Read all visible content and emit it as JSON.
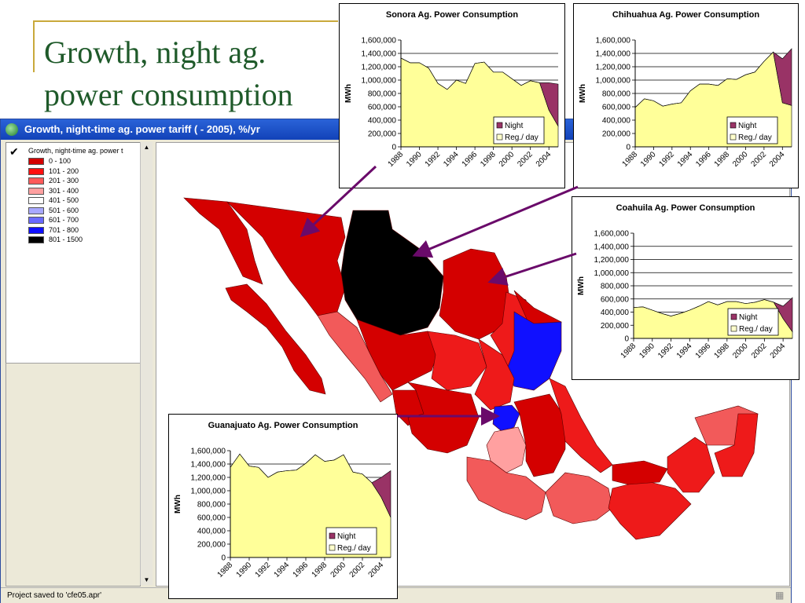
{
  "slide": {
    "title_line1": "Growth, night ag.",
    "title_line2": "power consumption"
  },
  "app": {
    "title": "Growth, night-time ag. power tariff ( - 2005), %/yr",
    "status": "Project saved to 'cfe05.apr'"
  },
  "legend": {
    "heading": "Growth, night-time ag. power t",
    "items": [
      {
        "label": "0 - 100",
        "color": "#d40000"
      },
      {
        "label": "101 - 200",
        "color": "#ff1010"
      },
      {
        "label": "201 - 300",
        "color": "#ff5a5a"
      },
      {
        "label": "301 - 400",
        "color": "#ffa0a0"
      },
      {
        "label": "401 - 500",
        "color": "#ffffff"
      },
      {
        "label": "501 - 600",
        "color": "#a8a8ff"
      },
      {
        "label": "601 - 700",
        "color": "#6a6aff"
      },
      {
        "label": "701 - 800",
        "color": "#1010ff"
      },
      {
        "label": "801 - 1500",
        "color": "#000000"
      }
    ]
  },
  "map_colors": {
    "c0_100": "#d40000",
    "c101_200": "#ee1a1a",
    "c201_300": "#f25a5a",
    "c301_400": "#ffa0a0",
    "c701_800": "#1010ff",
    "c801_1500": "#000000",
    "arrow": "#6a0a6a"
  },
  "chart_data": [
    {
      "id": "sonora",
      "type": "area",
      "title": "Sonora Ag. Power Consumption",
      "ylabel": "MWh",
      "ylim": [
        0,
        1600000
      ],
      "yticks": [
        "1,600,000",
        "1,400,000",
        "1,200,000",
        "1,000,000",
        "800,000",
        "600,000",
        "400,000",
        "200,000",
        "0"
      ],
      "xticks": [
        "1988",
        "1990",
        "1992",
        "1994",
        "1996",
        "1998",
        "2000",
        "2002",
        "2004"
      ],
      "x": [
        1988,
        1989,
        1990,
        1991,
        1992,
        1993,
        1994,
        1995,
        1996,
        1997,
        1998,
        1999,
        2000,
        2001,
        2002,
        2003,
        2004,
        2005
      ],
      "series": [
        {
          "name": "Reg./ day",
          "color": "#ffff99",
          "values": [
            1330000,
            1260000,
            1260000,
            1180000,
            950000,
            860000,
            1000000,
            950000,
            1250000,
            1270000,
            1120000,
            1120000,
            1020000,
            920000,
            990000,
            960000,
            550000,
            310000
          ]
        },
        {
          "name": "Night",
          "color": "#993366",
          "values": [
            0,
            0,
            0,
            0,
            0,
            0,
            0,
            0,
            0,
            0,
            0,
            0,
            0,
            0,
            0,
            0,
            410000,
            630000
          ]
        }
      ],
      "legend": [
        {
          "name": "Night",
          "color": "#993366"
        },
        {
          "name": "Reg./ day",
          "color": "#ffffcc"
        }
      ]
    },
    {
      "id": "chihuahua",
      "type": "area",
      "title": "Chihuahua Ag. Power Consumption",
      "ylabel": "MWh",
      "ylim": [
        0,
        1600000
      ],
      "yticks": [
        "1,600,000",
        "1,400,000",
        "1,200,000",
        "1,000,000",
        "800,000",
        "600,000",
        "400,000",
        "200,000",
        "0"
      ],
      "xticks": [
        "1988",
        "1990",
        "1992",
        "1994",
        "1996",
        "1998",
        "2000",
        "2002",
        "2004"
      ],
      "x": [
        1988,
        1989,
        1990,
        1991,
        1992,
        1993,
        1994,
        1995,
        1996,
        1997,
        1998,
        1999,
        2000,
        2001,
        2002,
        2003,
        2004,
        2005
      ],
      "series": [
        {
          "name": "Reg./ day",
          "color": "#ffff99",
          "values": [
            590000,
            720000,
            690000,
            610000,
            640000,
            660000,
            840000,
            940000,
            940000,
            920000,
            1020000,
            1010000,
            1080000,
            1120000,
            1280000,
            1420000,
            660000,
            620000
          ]
        },
        {
          "name": "Night",
          "color": "#993366",
          "values": [
            0,
            0,
            0,
            0,
            0,
            0,
            0,
            0,
            0,
            0,
            0,
            0,
            0,
            0,
            0,
            0,
            660000,
            850000
          ]
        }
      ],
      "legend": [
        {
          "name": "Night",
          "color": "#993366"
        },
        {
          "name": "Reg./ day",
          "color": "#ffffcc"
        }
      ]
    },
    {
      "id": "coahuila",
      "type": "area",
      "title": "Coahuila Ag. Power Consumption",
      "ylabel": "MWh",
      "ylim": [
        0,
        1600000
      ],
      "yticks": [
        "1,600,000",
        "1,400,000",
        "1,200,000",
        "1,000,000",
        "800,000",
        "600,000",
        "400,000",
        "200,000",
        "0"
      ],
      "xticks": [
        "1988",
        "1990",
        "1992",
        "1994",
        "1996",
        "1998",
        "2000",
        "2002",
        "2004"
      ],
      "x": [
        1988,
        1989,
        1990,
        1991,
        1992,
        1993,
        1994,
        1995,
        1996,
        1997,
        1998,
        1999,
        2000,
        2001,
        2002,
        2003,
        2004,
        2005
      ],
      "series": [
        {
          "name": "Reg./ day",
          "color": "#ffff99",
          "values": [
            470000,
            480000,
            430000,
            380000,
            340000,
            380000,
            430000,
            490000,
            560000,
            510000,
            560000,
            560000,
            530000,
            550000,
            590000,
            550000,
            300000,
            100000
          ]
        },
        {
          "name": "Night",
          "color": "#993366",
          "values": [
            0,
            0,
            0,
            0,
            0,
            0,
            0,
            0,
            0,
            0,
            0,
            0,
            0,
            0,
            0,
            0,
            190000,
            520000
          ]
        }
      ],
      "legend": [
        {
          "name": "Night",
          "color": "#993366"
        },
        {
          "name": "Reg./ day",
          "color": "#ffffcc"
        }
      ]
    },
    {
      "id": "guanajuato",
      "type": "area",
      "title": "Guanajuato Ag. Power Consumption",
      "ylabel": "MWh",
      "ylim": [
        0,
        1600000
      ],
      "yticks": [
        "1,600,000",
        "1,400,000",
        "1,200,000",
        "1,000,000",
        "800,000",
        "600,000",
        "400,000",
        "200,000",
        "0"
      ],
      "xticks": [
        "1988",
        "1990",
        "1992",
        "1994",
        "1996",
        "1998",
        "2000",
        "2002",
        "2004"
      ],
      "x": [
        1988,
        1989,
        1990,
        1991,
        1992,
        1993,
        1994,
        1995,
        1996,
        1997,
        1998,
        1999,
        2000,
        2001,
        2002,
        2003,
        2004,
        2005
      ],
      "series": [
        {
          "name": "Reg./ day",
          "color": "#ffff99",
          "values": [
            1350000,
            1550000,
            1370000,
            1350000,
            1200000,
            1280000,
            1300000,
            1310000,
            1410000,
            1540000,
            1440000,
            1460000,
            1540000,
            1280000,
            1250000,
            1120000,
            900000,
            600000
          ]
        },
        {
          "name": "Night",
          "color": "#993366",
          "values": [
            0,
            0,
            0,
            0,
            0,
            0,
            0,
            0,
            0,
            0,
            0,
            0,
            0,
            0,
            0,
            0,
            300000,
            700000
          ]
        }
      ],
      "legend": [
        {
          "name": "Night",
          "color": "#993366"
        },
        {
          "name": "Reg./ day",
          "color": "#ffffcc"
        }
      ]
    }
  ]
}
